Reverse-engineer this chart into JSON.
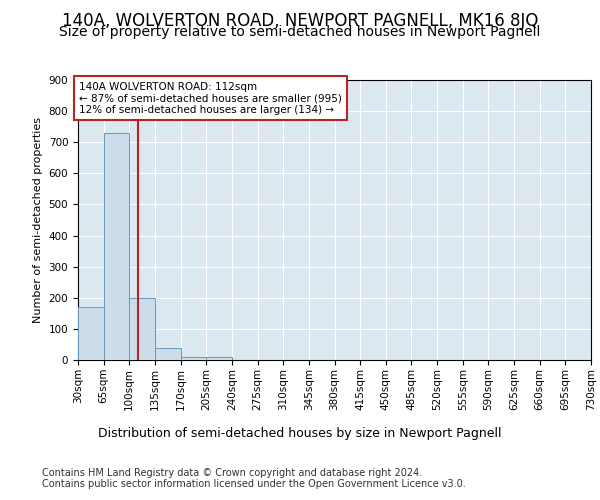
{
  "title": "140A, WOLVERTON ROAD, NEWPORT PAGNELL, MK16 8JQ",
  "subtitle": "Size of property relative to semi-detached houses in Newport Pagnell",
  "xlabel": "Distribution of semi-detached houses by size in Newport Pagnell",
  "ylabel": "Number of semi-detached properties",
  "footer1": "Contains HM Land Registry data © Crown copyright and database right 2024.",
  "footer2": "Contains public sector information licensed under the Open Government Licence v3.0.",
  "bin_edges": [
    30,
    65,
    100,
    135,
    170,
    205,
    240,
    275,
    310,
    345,
    380,
    415,
    450,
    485,
    520,
    555,
    590,
    625,
    660,
    695,
    730
  ],
  "bin_counts": [
    170,
    730,
    200,
    38,
    10,
    10,
    0,
    0,
    0,
    0,
    0,
    0,
    0,
    0,
    0,
    0,
    0,
    0,
    0,
    0
  ],
  "bar_color": "#ccdce8",
  "bar_edge_color": "#6699bb",
  "property_size": 112,
  "red_line_color": "#bb2222",
  "annotation_line1": "140A WOLVERTON ROAD: 112sqm",
  "annotation_line2": "← 87% of semi-detached houses are smaller (995)",
  "annotation_line3": "12% of semi-detached houses are larger (134) →",
  "annotation_box_color": "#ffffff",
  "annotation_box_edge": "#bb2222",
  "ylim_max": 900,
  "yticks": [
    0,
    100,
    200,
    300,
    400,
    500,
    600,
    700,
    800,
    900
  ],
  "bg_color": "#dce8f0",
  "fig_bg_color": "#ffffff",
  "grid_color": "#ffffff",
  "title_fontsize": 12,
  "subtitle_fontsize": 10,
  "xlabel_fontsize": 9,
  "ylabel_fontsize": 8,
  "tick_fontsize": 7.5,
  "footer_fontsize": 7
}
